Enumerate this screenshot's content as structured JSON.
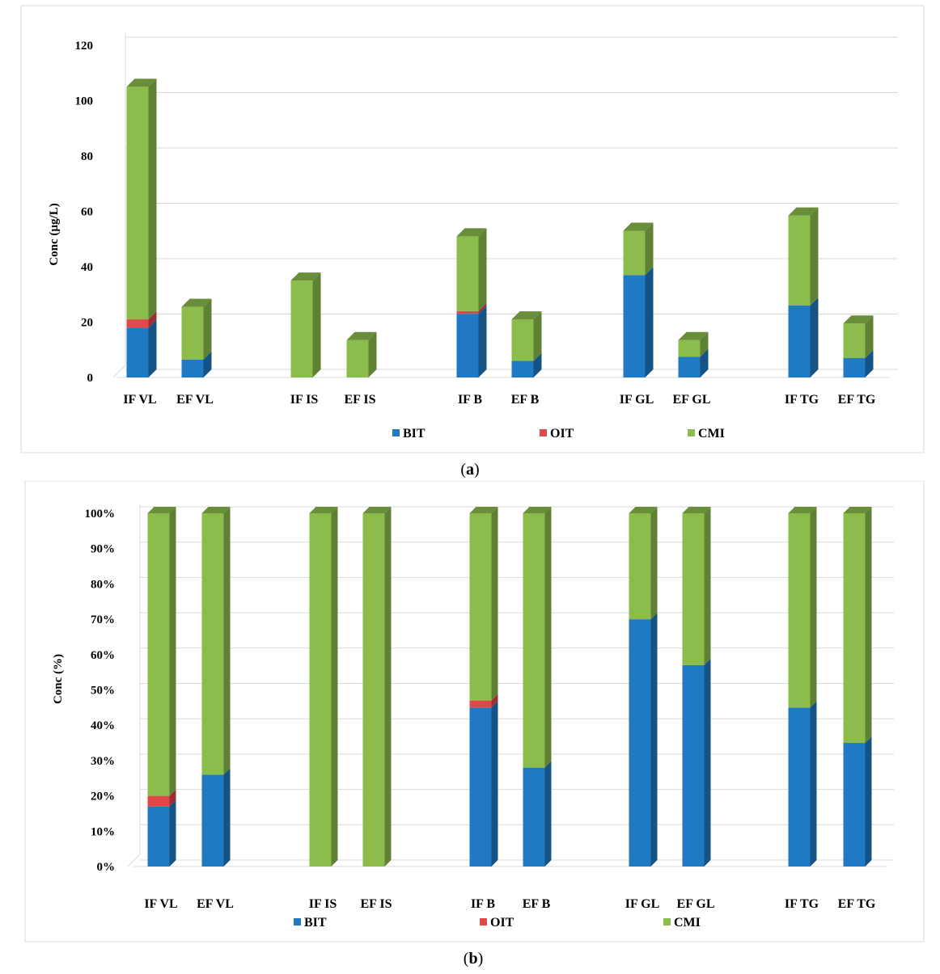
{
  "colors": {
    "BIT": "#1F7AC3",
    "OIT": "#E2474A",
    "CMI": "#8CBD4C"
  },
  "chart_data": [
    {
      "type": "bar",
      "stacked": true,
      "style": "3d-column",
      "panel_label": "a",
      "ylabel": "Conc (µg/L)",
      "xlabel": "",
      "ylim": [
        0,
        120
      ],
      "yticks": [
        "0",
        "20",
        "40",
        "60",
        "80",
        "100",
        "120"
      ],
      "yticks_values": [
        0,
        20,
        40,
        60,
        80,
        100,
        120
      ],
      "categories": [
        "IF VL",
        "EF VL",
        "IF IS",
        "EF IS",
        "IF B",
        "EF B",
        "IF GL",
        "EF GL",
        "IF TG",
        "EF TG"
      ],
      "series": [
        {
          "name": "BIT",
          "values": [
            18,
            6.5,
            0,
            0,
            23,
            6,
            37,
            7.5,
            26,
            7
          ]
        },
        {
          "name": "OIT",
          "values": [
            3,
            0,
            0,
            0,
            1,
            0,
            0,
            0,
            0,
            0
          ]
        },
        {
          "name": "CMI",
          "values": [
            84,
            19,
            35,
            13.5,
            27,
            15,
            16,
            6,
            32.5,
            12.5
          ]
        }
      ],
      "legend": [
        "BIT",
        "OIT",
        "CMI"
      ],
      "legend_position": "bottom",
      "grid": true
    },
    {
      "type": "bar",
      "stacked": true,
      "style": "3d-column",
      "panel_label": "b",
      "ylabel": "Conc (%)",
      "xlabel": "",
      "ylim": [
        0,
        100
      ],
      "yticks": [
        "0%",
        "10%",
        "20%",
        "30%",
        "40%",
        "50%",
        "60%",
        "70%",
        "80%",
        "90%",
        "100%"
      ],
      "yticks_values": [
        0,
        10,
        20,
        30,
        40,
        50,
        60,
        70,
        80,
        90,
        100
      ],
      "categories": [
        "IF VL",
        "EF VL",
        "IF IS",
        "EF IS",
        "IF B",
        "EF B",
        "IF GL",
        "EF GL",
        "IF TG",
        "EF TG"
      ],
      "series": [
        {
          "name": "BIT",
          "values": [
            17,
            26,
            0,
            0,
            45,
            28,
            70,
            57,
            45,
            35
          ]
        },
        {
          "name": "OIT",
          "values": [
            3,
            0,
            0,
            0,
            2,
            0,
            0,
            0,
            0,
            0
          ]
        },
        {
          "name": "CMI",
          "values": [
            80,
            74,
            100,
            100,
            53,
            72,
            30,
            43,
            55,
            65
          ]
        }
      ],
      "legend": [
        "BIT",
        "OIT",
        "CMI"
      ],
      "legend_position": "bottom",
      "grid": true
    }
  ]
}
